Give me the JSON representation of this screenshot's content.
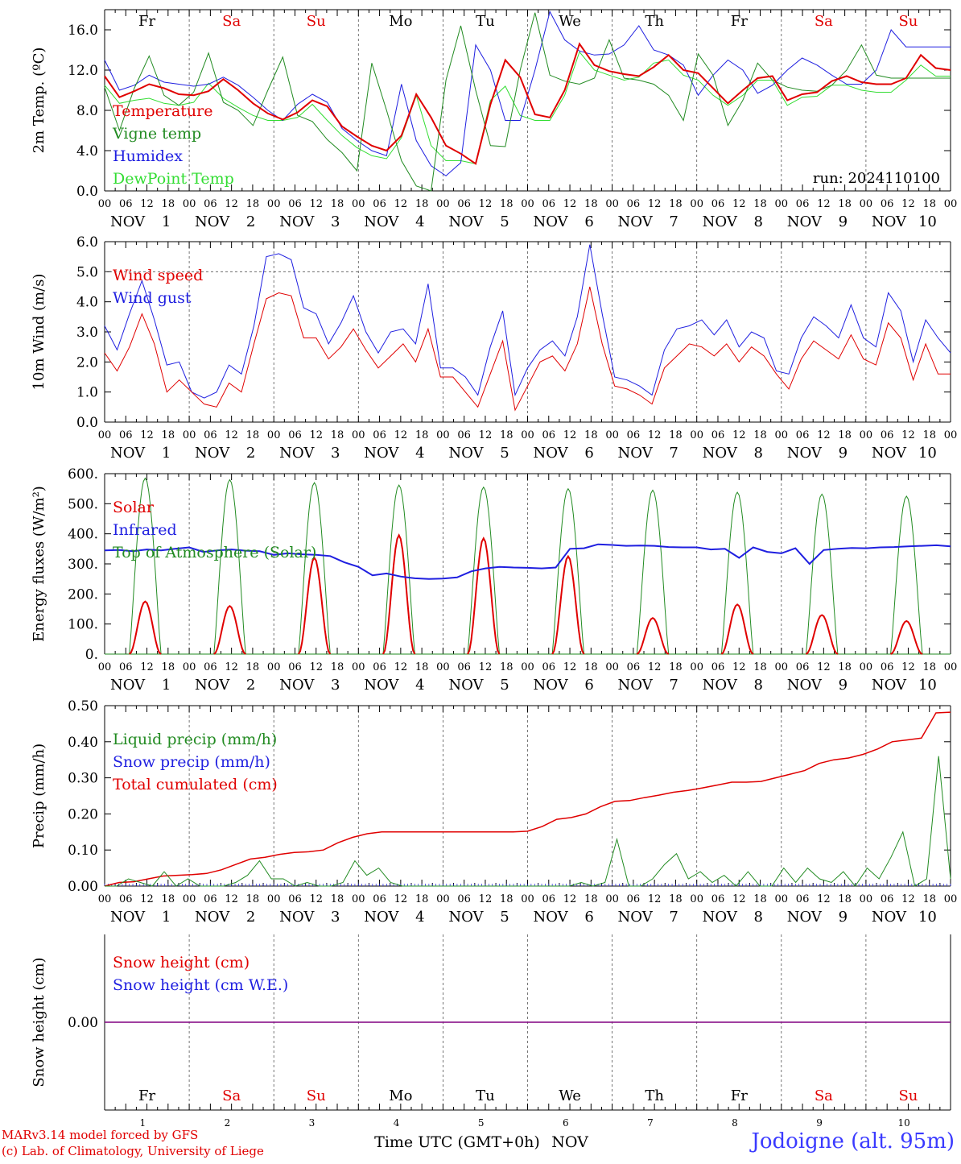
{
  "chart_data": {
    "type": "line",
    "day_names": [
      "Fr",
      "Sa",
      "Su",
      "Mo",
      "Tu",
      "We",
      "Th",
      "Fr",
      "Sa",
      "Su"
    ],
    "weekend_flags": [
      false,
      true,
      true,
      false,
      false,
      false,
      false,
      false,
      true,
      true
    ],
    "month_label": "NOV",
    "day_numbers": [
      "1",
      "2",
      "3",
      "4",
      "5",
      "6",
      "7",
      "8",
      "9",
      "10"
    ],
    "hour_ticks": [
      "00",
      "06",
      "12",
      "18"
    ],
    "colors": {
      "red": "#e00000",
      "green": "#228b22",
      "blue": "#1f1fe0",
      "lightgreen": "#33dd33",
      "purple": "#800080",
      "axis": "#000000",
      "grid": "#555555"
    },
    "panels": [
      {
        "id": "temperature",
        "ylabel": "2m Temp. (ºC)",
        "ylim": [
          0,
          18
        ],
        "yticks": [
          "0.0",
          "4.0",
          "8.0",
          "12.0",
          "16.0"
        ],
        "run_label": "run: 2024110100",
        "series": [
          {
            "name": "Temperature",
            "color": "red",
            "width": 2,
            "values": [
              11.4,
              9.3,
              9.9,
              10.6,
              10.2,
              9.6,
              9.5,
              9.9,
              11.1,
              10.0,
              8.7,
              7.7,
              7.1,
              7.8,
              9.0,
              8.4,
              6.4,
              5.4,
              4.5,
              4.0,
              5.5,
              9.6,
              7.3,
              4.5,
              3.7,
              2.7,
              8.6,
              13.0,
              11.3,
              7.6,
              7.3,
              10.0,
              14.6,
              12.5,
              11.9,
              11.6,
              11.4,
              12.3,
              13.5,
              12.0,
              11.7,
              10.2,
              8.7,
              10.0,
              11.2,
              11.4,
              9.0,
              9.6,
              9.8,
              10.9,
              11.4,
              10.8,
              10.6,
              10.6,
              11.2,
              13.5,
              12.2,
              12.0
            ]
          },
          {
            "name": "Vigne temp",
            "color": "green",
            "width": 1,
            "values": [
              10.3,
              6.0,
              10.2,
              13.4,
              9.5,
              8.5,
              9.8,
              13.7,
              8.8,
              8.0,
              6.5,
              10.0,
              13.3,
              7.5,
              6.9,
              5.1,
              3.8,
              2.0,
              12.7,
              8.0,
              3.0,
              0.5,
              0.0,
              11.0,
              16.4,
              10.0,
              4.5,
              4.4,
              12.0,
              17.7,
              11.5,
              10.9,
              10.6,
              11.2,
              15.0,
              11.2,
              11.0,
              10.6,
              9.5,
              7.0,
              13.6,
              11.5,
              6.5,
              9.0,
              12.7,
              11.0,
              10.3,
              10.0,
              9.9,
              10.5,
              12.0,
              14.5,
              11.5,
              11.2,
              11.2,
              11.2,
              11.2,
              11.2
            ]
          },
          {
            "name": "Humidex",
            "color": "blue",
            "width": 1,
            "values": [
              13.0,
              10.0,
              10.5,
              11.5,
              10.8,
              10.6,
              10.4,
              10.6,
              11.3,
              10.5,
              9.3,
              8.0,
              7.0,
              8.6,
              9.6,
              8.8,
              6.2,
              5.0,
              4.0,
              3.5,
              10.6,
              5.0,
              2.5,
              1.5,
              2.8,
              14.5,
              12.0,
              7.0,
              7.0,
              12.0,
              17.8,
              15.0,
              13.9,
              13.5,
              13.6,
              14.5,
              16.4,
              14.0,
              13.5,
              12.5,
              9.5,
              11.5,
              13.0,
              12.0,
              9.7,
              10.5,
              12.0,
              13.2,
              12.5,
              11.5,
              10.6,
              10.6,
              12.0,
              16.0,
              14.3,
              14.3,
              14.3,
              14.3
            ]
          },
          {
            "name": "DewPoint Temp",
            "color": "lightgreen",
            "width": 1,
            "values": [
              10.5,
              8.7,
              9.0,
              9.2,
              8.7,
              8.5,
              8.8,
              10.7,
              9.2,
              8.3,
              7.5,
              7.0,
              7.0,
              7.3,
              8.6,
              7.0,
              5.5,
              4.3,
              3.5,
              3.2,
              5.3,
              9.5,
              4.5,
              3.0,
              3.0,
              2.7,
              9.0,
              10.4,
              7.5,
              7.0,
              7.0,
              9.5,
              13.8,
              12.0,
              11.5,
              11.0,
              11.3,
              12.7,
              13.0,
              11.5,
              11.0,
              9.5,
              8.5,
              9.5,
              11.0,
              11.0,
              8.5,
              9.3,
              9.4,
              10.5,
              10.5,
              10.0,
              9.8,
              9.8,
              11.0,
              12.5,
              11.4,
              11.4
            ]
          }
        ]
      },
      {
        "id": "wind",
        "ylabel": "10m Wind (m/s)",
        "ylim": [
          0,
          6
        ],
        "yticks": [
          "0.0",
          "1.0",
          "2.0",
          "3.0",
          "4.0",
          "5.0",
          "6.0"
        ],
        "dashed_level": 5,
        "series": [
          {
            "name": "Wind speed",
            "color": "red",
            "width": 1,
            "values": [
              2.3,
              1.7,
              2.5,
              3.6,
              2.6,
              1.0,
              1.4,
              1.0,
              0.6,
              0.5,
              1.3,
              1.0,
              2.6,
              4.1,
              4.3,
              4.2,
              2.8,
              2.8,
              2.1,
              2.5,
              3.1,
              2.4,
              1.8,
              2.2,
              2.6,
              2.0,
              3.1,
              1.5,
              1.5,
              1.0,
              0.5,
              1.6,
              2.7,
              0.4,
              1.2,
              2.0,
              2.2,
              1.7,
              2.6,
              4.5,
              2.6,
              1.2,
              1.1,
              0.9,
              0.6,
              1.8,
              2.2,
              2.6,
              2.5,
              2.2,
              2.6,
              2.0,
              2.5,
              2.2,
              1.6,
              1.1,
              2.1,
              2.7,
              2.4,
              2.1,
              2.9,
              2.1,
              1.9,
              3.3,
              2.8,
              1.4,
              2.6,
              1.6,
              1.6
            ]
          },
          {
            "name": "Wind gust",
            "color": "blue",
            "width": 1,
            "values": [
              3.2,
              2.4,
              3.6,
              4.7,
              3.4,
              1.9,
              2.0,
              1.0,
              0.8,
              1.0,
              1.9,
              1.6,
              3.2,
              5.5,
              5.6,
              5.4,
              3.8,
              3.6,
              2.6,
              3.3,
              4.2,
              3.0,
              2.3,
              3.0,
              3.1,
              2.6,
              4.6,
              1.8,
              1.8,
              1.5,
              0.9,
              2.5,
              3.7,
              0.9,
              1.8,
              2.4,
              2.7,
              2.2,
              3.5,
              5.9,
              3.6,
              1.5,
              1.4,
              1.2,
              0.9,
              2.4,
              3.1,
              3.2,
              3.4,
              2.9,
              3.4,
              2.5,
              3.0,
              2.8,
              1.7,
              1.6,
              2.8,
              3.5,
              3.2,
              2.8,
              3.9,
              2.8,
              2.5,
              4.3,
              3.7,
              2.0,
              3.4,
              2.8,
              2.3
            ]
          }
        ]
      },
      {
        "id": "energy",
        "ylabel": "Energy fluxes (W/m²)",
        "ylim": [
          0,
          600
        ],
        "yticks": [
          "0.",
          "100.",
          "200.",
          "300.",
          "400.",
          "500.",
          "600."
        ],
        "daylight": {
          "rise_h": 7,
          "set_h": 16
        },
        "solar_peaks": [
          175,
          160,
          320,
          395,
          385,
          325,
          120,
          165,
          130,
          110
        ],
        "toa_peaks": [
          585,
          580,
          570,
          562,
          555,
          550,
          545,
          538,
          532,
          525
        ],
        "infrared": [
          345,
          346,
          342,
          348,
          345,
          350,
          355,
          340,
          345,
          348,
          344,
          342,
          330,
          335,
          332,
          330,
          326,
          305,
          290,
          262,
          268,
          258,
          252,
          250,
          251,
          255,
          275,
          285,
          290,
          288,
          287,
          285,
          288,
          350,
          352,
          365,
          363,
          360,
          361,
          360,
          356,
          355,
          355,
          348,
          350,
          320,
          355,
          340,
          335,
          352,
          300,
          346,
          350,
          353,
          352,
          355,
          356,
          358,
          360,
          362,
          358
        ],
        "series_names": [
          "Solar",
          "Infrared",
          "Top of Atmosphere (Solar)"
        ],
        "series_colors": [
          "red",
          "blue",
          "green"
        ]
      },
      {
        "id": "precip",
        "ylabel": "Precip (mm/h)",
        "ylim": [
          0,
          0.5
        ],
        "yticks": [
          "0.00",
          "0.10",
          "0.20",
          "0.30",
          "0.40",
          "0.50"
        ],
        "series": [
          {
            "name": "Liquid precip (mm/h)",
            "color": "green",
            "width": 1,
            "values": [
              0.0,
              0.0,
              0.02,
              0.01,
              0.0,
              0.04,
              0.0,
              0.02,
              0.0,
              0.0,
              0.0,
              0.01,
              0.03,
              0.07,
              0.02,
              0.02,
              0.0,
              0.01,
              0.0,
              0.0,
              0.01,
              0.07,
              0.03,
              0.05,
              0.01,
              0.0,
              0.0,
              0.0,
              0.0,
              0.0,
              0.0,
              0.0,
              0.0,
              0.0,
              0.0,
              0.0,
              0.0,
              0.0,
              0.0,
              0.0,
              0.01,
              0.0,
              0.01,
              0.13,
              0.0,
              0.0,
              0.02,
              0.06,
              0.09,
              0.02,
              0.04,
              0.01,
              0.03,
              0.0,
              0.04,
              0.0,
              0.0,
              0.05,
              0.01,
              0.05,
              0.02,
              0.01,
              0.04,
              0.0,
              0.05,
              0.02,
              0.08,
              0.15,
              0.0,
              0.02,
              0.36,
              0.02
            ]
          },
          {
            "name": "Snow precip (mm/h)",
            "color": "blue",
            "width": 1,
            "values": []
          },
          {
            "name": "Total cumulated (cm)",
            "color": "red",
            "width": 1.5,
            "values": [
              0.0,
              0.01,
              0.012,
              0.02,
              0.028,
              0.03,
              0.032,
              0.035,
              0.045,
              0.06,
              0.075,
              0.08,
              0.088,
              0.093,
              0.095,
              0.1,
              0.12,
              0.135,
              0.145,
              0.15,
              0.15,
              0.15,
              0.15,
              0.15,
              0.15,
              0.15,
              0.15,
              0.15,
              0.15,
              0.152,
              0.165,
              0.185,
              0.19,
              0.2,
              0.22,
              0.235,
              0.237,
              0.245,
              0.252,
              0.26,
              0.265,
              0.272,
              0.28,
              0.288,
              0.288,
              0.29,
              0.3,
              0.31,
              0.32,
              0.34,
              0.35,
              0.355,
              0.365,
              0.38,
              0.4,
              0.405,
              0.41,
              0.48,
              0.482
            ]
          }
        ]
      },
      {
        "id": "snow",
        "ylabel": "Snow height (cm)",
        "ylim": [
          -1,
          1
        ],
        "yticks": [
          "0.00"
        ],
        "series": [
          {
            "name": "Snow height (cm)",
            "color": "red",
            "width": 1,
            "values": [
              0,
              0
            ]
          },
          {
            "name": "Snow height (cm W.E.)",
            "color": "blue",
            "width": 1,
            "values": [
              0,
              0
            ]
          }
        ]
      }
    ],
    "xlabel": "Time UTC (GMT+0h)",
    "x_month": "NOV",
    "footer": {
      "credit_1": "MARv3.14 model forced by GFS",
      "credit_2": "(c) Lab. of Climatology, University of Liege",
      "station": "Jodoigne (alt. 95m)"
    }
  }
}
